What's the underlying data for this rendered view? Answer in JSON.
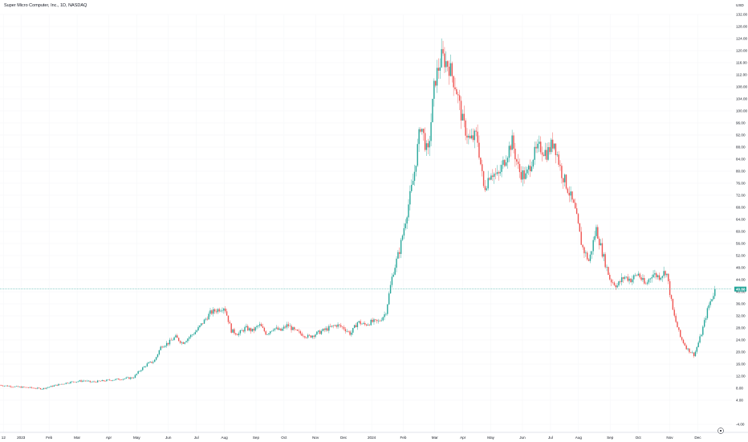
{
  "header": {
    "title": "Super Micro Computer, Inc., 1D, NASDAQ",
    "currency": "USD"
  },
  "chart_data": {
    "type": "candlestick",
    "title": "Super Micro Computer, Inc., 1D, NASDAQ",
    "ylim": [
      -4,
      132
    ],
    "y_ticks": [
      "132.00",
      "128.00",
      "124.00",
      "120.00",
      "116.00",
      "112.00",
      "108.00",
      "104.00",
      "100.00",
      "96.00",
      "92.00",
      "88.00",
      "84.00",
      "80.00",
      "76.00",
      "72.00",
      "68.00",
      "64.00",
      "60.00",
      "56.00",
      "52.00",
      "48.00",
      "44.00",
      "40.00",
      "36.00",
      "32.00",
      "28.00",
      "24.00",
      "20.00",
      "16.00",
      "12.00",
      "8.00",
      "4.00",
      "-4.00"
    ],
    "x_labels": [
      {
        "label": "12",
        "t": 0.5
      },
      {
        "label": "2023",
        "t": 3
      },
      {
        "label": "Feb",
        "t": 7
      },
      {
        "label": "Mar",
        "t": 11
      },
      {
        "label": "Apr",
        "t": 15.5
      },
      {
        "label": "May",
        "t": 19.5
      },
      {
        "label": "Jun",
        "t": 24
      },
      {
        "label": "Jul",
        "t": 28
      },
      {
        "label": "Aug",
        "t": 32
      },
      {
        "label": "Sep",
        "t": 36.5
      },
      {
        "label": "Oct",
        "t": 40.5
      },
      {
        "label": "Nov",
        "t": 45
      },
      {
        "label": "Dec",
        "t": 49
      },
      {
        "label": "2024",
        "t": 53
      },
      {
        "label": "Feb",
        "t": 57.5
      },
      {
        "label": "Mar",
        "t": 62
      },
      {
        "label": "Apr",
        "t": 66
      },
      {
        "label": "May",
        "t": 70
      },
      {
        "label": "Jun",
        "t": 74.5
      },
      {
        "label": "Jul",
        "t": 78.5
      },
      {
        "label": "Aug",
        "t": 82.5
      },
      {
        "label": "Sep",
        "t": 87
      },
      {
        "label": "Oct",
        "t": 91
      },
      {
        "label": "Nov",
        "t": 95.5
      },
      {
        "label": "Dec",
        "t": 99.5
      }
    ],
    "current_price": 40.88,
    "current_price_label": "40.88",
    "price_path": [
      [
        0,
        9
      ],
      [
        2,
        8.5
      ],
      [
        4,
        8.2
      ],
      [
        6,
        7.8
      ],
      [
        8,
        9
      ],
      [
        10,
        10
      ],
      [
        12,
        10.5
      ],
      [
        13,
        10
      ],
      [
        15,
        10.5
      ],
      [
        17,
        11
      ],
      [
        19,
        11.5
      ],
      [
        20,
        14
      ],
      [
        21,
        16
      ],
      [
        22,
        17
      ],
      [
        23,
        22
      ],
      [
        24,
        23
      ],
      [
        25,
        25
      ],
      [
        26,
        23
      ],
      [
        27,
        25
      ],
      [
        28,
        27
      ],
      [
        29,
        30
      ],
      [
        30,
        33
      ],
      [
        31,
        34
      ],
      [
        32,
        35
      ],
      [
        33,
        27
      ],
      [
        34,
        26
      ],
      [
        35,
        28
      ],
      [
        36,
        27
      ],
      [
        37,
        29
      ],
      [
        38,
        26
      ],
      [
        39,
        28
      ],
      [
        40,
        27
      ],
      [
        41,
        29
      ],
      [
        42,
        27
      ],
      [
        43,
        26
      ],
      [
        44,
        25
      ],
      [
        45,
        26
      ],
      [
        46,
        27
      ],
      [
        47,
        28
      ],
      [
        48,
        29
      ],
      [
        49,
        28
      ],
      [
        50,
        26
      ],
      [
        51,
        30
      ],
      [
        52,
        29
      ],
      [
        53,
        30
      ],
      [
        54,
        30
      ],
      [
        55,
        33
      ],
      [
        56,
        46
      ],
      [
        57,
        54
      ],
      [
        58,
        66
      ],
      [
        59,
        78
      ],
      [
        60,
        96
      ],
      [
        61,
        85
      ],
      [
        62,
        110
      ],
      [
        63,
        118
      ],
      [
        64,
        115
      ],
      [
        65,
        108
      ],
      [
        66,
        96
      ],
      [
        67,
        90
      ],
      [
        68,
        92
      ],
      [
        69,
        74
      ],
      [
        70,
        80
      ],
      [
        71,
        78
      ],
      [
        72,
        84
      ],
      [
        73,
        90
      ],
      [
        74,
        80
      ],
      [
        75,
        78
      ],
      [
        76,
        85
      ],
      [
        77,
        88
      ],
      [
        78,
        86
      ],
      [
        79,
        90
      ],
      [
        80,
        80
      ],
      [
        81,
        74
      ],
      [
        82,
        67
      ],
      [
        83,
        55
      ],
      [
        84,
        50
      ],
      [
        85,
        61
      ],
      [
        86,
        52
      ],
      [
        87,
        44
      ],
      [
        88,
        42
      ],
      [
        89,
        45
      ],
      [
        90,
        44
      ],
      [
        91,
        46
      ],
      [
        92,
        42
      ],
      [
        93,
        46
      ],
      [
        94,
        45
      ],
      [
        95,
        47
      ],
      [
        96,
        33
      ],
      [
        97,
        25
      ],
      [
        98,
        21
      ],
      [
        99,
        19
      ],
      [
        100,
        26
      ],
      [
        101,
        35
      ],
      [
        102,
        40.88
      ]
    ]
  }
}
